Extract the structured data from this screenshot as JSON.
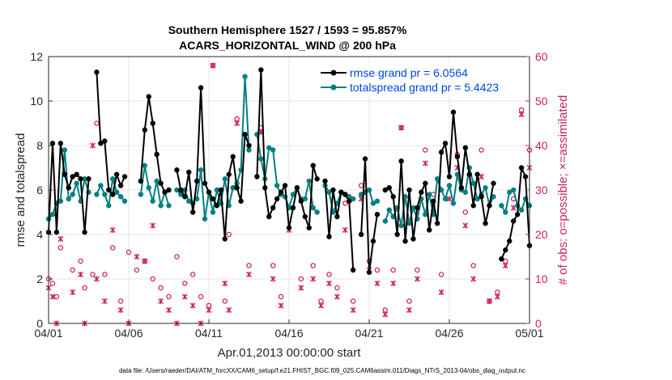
{
  "colors": {
    "rmse": "#000000",
    "spread": "#008080",
    "obs": "#cc1f5c",
    "legend_text": "#0044dd"
  },
  "chart_data": {
    "type": "line",
    "title_line1": "Southern Hemisphere 1527 / 1593 = 95.857%",
    "title_line2": "ACARS_HORIZONTAL_WIND @ 200 hPa",
    "xlabel": "Apr.01,2013 00:00:00 start",
    "ylabel_left": "rmse and totalspread",
    "ylabel_right": "# of obs: o=possible; ×=assimilated",
    "footer": "data file: /Users/raeder/DAI/ATM_forcXX/CAM6_setup/f.e21.FHIST_BGC.f09_025.CAM6assim.011/Diags_NTrS_2013-04/obs_diag_output.nc",
    "x_range": [
      0,
      30
    ],
    "x_ticks": [
      0,
      5,
      10,
      15,
      20,
      25,
      30
    ],
    "x_tick_labels": [
      "04/01",
      "04/06",
      "04/11",
      "04/16",
      "04/21",
      "04/26",
      "05/01"
    ],
    "ylim_left": [
      0,
      12
    ],
    "y_ticks_left": [
      "0",
      "2",
      "4",
      "6",
      "8",
      "10",
      "12"
    ],
    "ylim_right": [
      0,
      60
    ],
    "y_ticks_right": [
      "0",
      "10",
      "20",
      "30",
      "40",
      "50",
      "60"
    ],
    "legend": {
      "rmse": "rmse grand pr = 6.0564",
      "spread": "totalspread grand pr = 5.4423",
      "location": "top-right"
    },
    "series": [
      {
        "name": "rmse",
        "x": [
          0,
          0.25,
          0.5,
          0.75,
          1,
          1.25,
          1.5,
          1.75,
          2,
          2.25,
          2.5,
          3,
          3.25,
          3.5,
          3.75,
          4,
          4.25,
          4.5,
          4.75,
          5.75,
          6,
          6.25,
          6.5,
          6.75,
          7,
          7.25,
          7.5,
          8,
          8.25,
          8.5,
          8.75,
          9,
          9.25,
          9.5,
          9.75,
          10,
          10.25,
          10.5,
          10.75,
          11,
          11.25,
          11.5,
          11.75,
          12,
          12.25,
          12.5,
          13,
          13.25,
          13.5,
          13.75,
          14,
          14.25,
          14.5,
          14.75,
          15,
          15.25,
          15.5,
          15.75,
          16,
          16.25,
          16.5,
          16.75,
          17.25,
          17.5,
          17.75,
          18,
          18.25,
          18.5,
          18.75,
          19,
          19.5,
          19.75,
          20,
          20.25,
          20.5,
          21,
          21.25,
          21.5,
          21.75,
          22,
          22.25,
          22.5,
          22.75,
          23,
          23.25,
          23.5,
          23.75,
          24,
          24.25,
          24.5,
          24.75,
          25,
          25.25,
          25.5,
          25.75,
          26,
          26.25,
          26.5,
          26.75,
          27,
          27.25,
          27.5,
          27.75,
          28.25,
          28.5,
          28.75,
          29,
          29.25,
          29.5,
          29.75,
          30
        ],
        "values": [
          4.1,
          8.1,
          4.1,
          8.1,
          6.7,
          6.1,
          6.6,
          6.7,
          6.5,
          4.1,
          6.5,
          11.3,
          8.1,
          8.2,
          6.0,
          5.8,
          6.7,
          6.2,
          6.6,
          6.4,
          8.7,
          10.2,
          9.0,
          7.6,
          6.3,
          5.9,
          6.0,
          6.9,
          6.0,
          5.7,
          6.8,
          5.0,
          6.4,
          10.6,
          6.3,
          5.9,
          5.6,
          5.3,
          6.0,
          3.8,
          6.7,
          7.5,
          6.1,
          5.5,
          8.5,
          8.0,
          6.6,
          11.4,
          6.1,
          4.8,
          5.2,
          5.6,
          5.9,
          6.2,
          4.3,
          5.2,
          6.1,
          5.5,
          4.8,
          4.3,
          7.1,
          6.5,
          6.4,
          3.9,
          6.0,
          4.8,
          5.9,
          5.8,
          5.5,
          2.4,
          4.0,
          7.4,
          2.3,
          3.7,
          4.9,
          6.0,
          6.1,
          5.7,
          4.0,
          7.3,
          3.7,
          6.0,
          3.8,
          5.2,
          5.9,
          6.3,
          4.2,
          5.5,
          4.5,
          7.7,
          8.1,
          6.6,
          9.5,
          7.5,
          6.1,
          7.9,
          6.7,
          5.3,
          6.7,
          5.7,
          4.5,
          5.3,
          6.3,
          2.9,
          3.3,
          3.7,
          4.6,
          4.9,
          7.0,
          6.6,
          3.5
        ]
      },
      {
        "name": "totalspread",
        "x": [
          0,
          0.25,
          0.5,
          0.75,
          1,
          1.25,
          1.5,
          1.75,
          2,
          2.25,
          2.5,
          3,
          3.25,
          3.5,
          3.75,
          4,
          4.25,
          4.5,
          4.75,
          5.75,
          6,
          6.25,
          6.5,
          6.75,
          7,
          7.25,
          7.5,
          8,
          8.25,
          8.5,
          8.75,
          9,
          9.25,
          9.5,
          9.75,
          10,
          10.25,
          10.5,
          10.75,
          11,
          11.25,
          11.5,
          11.75,
          12,
          12.25,
          12.5,
          13,
          13.25,
          13.5,
          13.75,
          14,
          14.25,
          14.5,
          14.75,
          15,
          15.25,
          15.5,
          15.75,
          16,
          16.25,
          16.5,
          16.75,
          17.25,
          17.5,
          17.75,
          18,
          18.25,
          18.5,
          18.75,
          19,
          19.5,
          19.75,
          20,
          20.25,
          20.5,
          21,
          21.25,
          21.5,
          21.75,
          22,
          22.25,
          22.5,
          22.75,
          23,
          23.25,
          23.5,
          23.75,
          24,
          24.25,
          24.5,
          24.75,
          25,
          25.25,
          25.5,
          25.75,
          26,
          26.25,
          26.5,
          26.75,
          27,
          27.25,
          27.5,
          27.75,
          28.25,
          28.5,
          28.75,
          29,
          29.25,
          29.5,
          29.75,
          30
        ],
        "values": [
          4.7,
          4.9,
          5.4,
          5.5,
          7.8,
          5.6,
          5.8,
          6.3,
          5.5,
          6.5,
          5.9,
          5.8,
          6.2,
          5.8,
          5.3,
          6.5,
          5.9,
          5.7,
          5.5,
          5.8,
          7.1,
          6.1,
          5.5,
          6.4,
          5.3,
          5.9,
          5.3,
          6.0,
          5.8,
          6.0,
          5.5,
          5.4,
          5.6,
          6.9,
          4.7,
          5.9,
          5.0,
          6.0,
          5.4,
          6.5,
          5.3,
          6.1,
          6.3,
          6.9,
          11.1,
          7.8,
          8.5,
          7.4,
          6.5,
          7.9,
          7.8,
          6.2,
          5.8,
          5.7,
          5.2,
          5.8,
          6.1,
          5.6,
          5.6,
          6.4,
          5.2,
          5.0,
          6.2,
          5.9,
          5.0,
          5.4,
          5.9,
          5.8,
          5.7,
          5.6,
          5.8,
          5.9,
          6.0,
          5.4,
          5.5,
          4.6,
          5.1,
          4.8,
          5.2,
          4.4,
          5.7,
          4.5,
          5.2,
          4.7,
          5.6,
          4.9,
          5.8,
          4.9,
          6.5,
          6.0,
          5.6,
          6.2,
          5.4,
          6.7,
          6.0,
          5.9,
          7.0,
          6.3,
          5.6,
          5.8,
          6.1,
          5.3,
          5.7,
          5.3,
          5.0,
          5.9,
          6.0,
          5.3,
          5.1,
          5.6,
          5.3
        ]
      },
      {
        "name": "obs_possible",
        "marker": "o",
        "x": [
          0,
          0.25,
          0.5,
          0.75,
          1.5,
          2.0,
          2.25,
          2.75,
          3.0,
          3.5,
          4.0,
          4.5,
          5.0,
          5.5,
          6.0,
          6.5,
          7.0,
          7.5,
          8.0,
          8.5,
          9.0,
          9.5,
          10.0,
          10.25,
          11.0,
          11.25,
          11.75,
          12.5,
          13.25,
          14.0,
          14.5,
          15.0,
          15.75,
          16.5,
          17.0,
          17.5,
          18.0,
          18.5,
          19.0,
          19.5,
          20.0,
          20.5,
          21.0,
          21.5,
          22.0,
          22.5,
          23.0,
          23.5,
          24.0,
          24.5,
          25.0,
          25.5,
          26.0,
          26.5,
          27.0,
          27.5,
          28.0,
          28.5,
          29.0,
          29.5,
          30.0
        ],
        "values": [
          10,
          9,
          6,
          17,
          12,
          14,
          8,
          11,
          45,
          11,
          17,
          5,
          16,
          12,
          14,
          10,
          8,
          6,
          15,
          9,
          11,
          6,
          4,
          58,
          5,
          20,
          46,
          13,
          44,
          13,
          6,
          26,
          10,
          13,
          5,
          11,
          8,
          27,
          5,
          31,
          14,
          12,
          3,
          12,
          44,
          5,
          12,
          39,
          29,
          11,
          31,
          38,
          25,
          13,
          39,
          5,
          7,
          14,
          28,
          48,
          39
        ]
      },
      {
        "name": "obs_assimilated",
        "marker": "x",
        "x": [
          0,
          0.25,
          0.5,
          0.75,
          1.5,
          2.0,
          2.25,
          2.75,
          3.0,
          3.5,
          4.0,
          4.5,
          5.0,
          5.5,
          6.0,
          6.5,
          7.0,
          7.5,
          8.0,
          8.5,
          9.0,
          9.5,
          10.0,
          10.25,
          11.0,
          11.25,
          11.75,
          12.5,
          13.25,
          14.0,
          14.5,
          15.0,
          15.75,
          16.5,
          17.0,
          17.5,
          18.0,
          18.5,
          19.0,
          19.5,
          20.0,
          20.5,
          21.0,
          21.5,
          22.0,
          22.5,
          23.0,
          23.5,
          24.0,
          24.5,
          25.0,
          25.5,
          26.0,
          26.5,
          27.0,
          27.5,
          28.0,
          28.5,
          29.0,
          29.5,
          30.0
        ],
        "values": [
          8,
          6,
          0,
          19,
          7,
          11,
          0,
          40,
          10,
          5,
          21,
          3,
          0,
          15,
          14,
          22,
          5,
          3,
          0,
          6,
          4,
          0,
          3,
          58,
          9,
          3,
          45,
          11,
          43,
          10,
          4,
          21,
          8,
          10,
          4,
          9,
          6,
          21,
          3,
          28,
          12,
          9,
          2,
          9,
          44,
          3,
          10,
          36,
          25,
          7,
          28,
          35,
          22,
          10,
          33,
          5,
          6,
          13,
          26,
          47,
          35
        ]
      }
    ]
  }
}
